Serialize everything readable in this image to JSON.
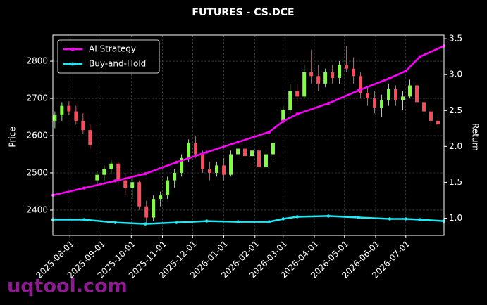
{
  "chart_data": {
    "type": "candlestick",
    "title": "FUTURES - CS.DCE",
    "y_label": "Price",
    "y2_label": "Return",
    "watermark": "uqtool.com",
    "up_color": "#7fff3f",
    "down_color": "#ff4a5a",
    "grid": true,
    "legend": "upper left",
    "xlim": [
      "2025-07-15",
      "2026-08-08"
    ],
    "xticks": [
      "2025-08-01",
      "2025-09-01",
      "2025-10-01",
      "2025-11-01",
      "2025-12-01",
      "2026-01-01",
      "2026-02-01",
      "2026-03-01",
      "2026-04-01",
      "2026-05-01",
      "2026-06-01",
      "2026-07-01"
    ],
    "ylim": [
      2332,
      2870
    ],
    "yticks": [
      2400,
      2500,
      2600,
      2700,
      2800
    ],
    "y2lim": [
      0.76,
      3.55
    ],
    "y2ticks": [
      {
        "value": 1,
        "label": "1.0"
      },
      1.5,
      {
        "value": 2,
        "label": "2.0"
      },
      2.5,
      {
        "value": 3,
        "label": "3.0"
      },
      3.5
    ],
    "x": [
      "2025-07-17",
      "2025-07-24",
      "2025-07-31",
      "2025-08-07",
      "2025-08-14",
      "2025-08-21",
      "2025-08-28",
      "2025-09-04",
      "2025-09-11",
      "2025-09-18",
      "2025-09-25",
      "2025-10-02",
      "2025-10-09",
      "2025-10-16",
      "2025-10-23",
      "2025-10-30",
      "2025-11-06",
      "2025-11-13",
      "2025-11-20",
      "2025-11-27",
      "2025-12-04",
      "2025-12-11",
      "2025-12-18",
      "2025-12-25",
      "2026-01-01",
      "2026-01-08",
      "2026-01-15",
      "2026-01-22",
      "2026-01-29",
      "2026-02-05",
      "2026-02-12",
      "2026-02-19",
      "2026-03-01",
      "2026-03-08",
      "2026-03-15",
      "2026-03-22",
      "2026-03-29",
      "2026-04-05",
      "2026-04-12",
      "2026-04-19",
      "2026-04-26",
      "2026-05-03",
      "2026-05-10",
      "2026-05-17",
      "2026-05-24",
      "2026-05-31",
      "2026-06-07",
      "2026-06-14",
      "2026-06-21",
      "2026-06-28",
      "2026-07-05",
      "2026-07-12",
      "2026-07-19",
      "2026-07-26",
      "2026-08-02"
    ],
    "open": [
      2640,
      2655,
      2680,
      2665,
      2640,
      2615,
      2480,
      2495,
      2510,
      2525,
      2480,
      2460,
      2475,
      2410,
      2380,
      2430,
      2440,
      2480,
      2500,
      2540,
      2580,
      2550,
      2510,
      2500,
      2520,
      2495,
      2550,
      2565,
      2545,
      2560,
      2515,
      2550,
      2640,
      2670,
      2720,
      2705,
      2770,
      2760,
      2740,
      2770,
      2755,
      2790,
      2780,
      2760,
      2715,
      2700,
      2675,
      2695,
      2725,
      2695,
      2705,
      2735,
      2690,
      2665,
      2640
    ],
    "high": [
      2665,
      2690,
      2692,
      2680,
      2660,
      2630,
      2505,
      2520,
      2535,
      2530,
      2500,
      2490,
      2480,
      2425,
      2440,
      2450,
      2490,
      2510,
      2550,
      2590,
      2600,
      2560,
      2530,
      2530,
      2540,
      2560,
      2580,
      2585,
      2575,
      2570,
      2560,
      2585,
      2680,
      2740,
      2740,
      2790,
      2830,
      2790,
      2780,
      2790,
      2800,
      2840,
      2810,
      2770,
      2730,
      2720,
      2710,
      2740,
      2735,
      2720,
      2750,
      2740,
      2705,
      2675,
      2655
    ],
    "low": [
      2620,
      2640,
      2655,
      2630,
      2605,
      2565,
      2470,
      2480,
      2495,
      2470,
      2440,
      2430,
      2400,
      2360,
      2370,
      2410,
      2430,
      2460,
      2490,
      2530,
      2540,
      2500,
      2480,
      2490,
      2480,
      2490,
      2530,
      2535,
      2525,
      2500,
      2505,
      2540,
      2630,
      2660,
      2690,
      2700,
      2740,
      2720,
      2730,
      2740,
      2740,
      2770,
      2740,
      2700,
      2680,
      2660,
      2650,
      2680,
      2680,
      2670,
      2700,
      2680,
      2650,
      2630,
      2620
    ],
    "close": [
      2655,
      2680,
      2665,
      2640,
      2615,
      2575,
      2495,
      2510,
      2525,
      2480,
      2460,
      2475,
      2410,
      2380,
      2430,
      2440,
      2480,
      2500,
      2540,
      2580,
      2550,
      2510,
      2500,
      2520,
      2495,
      2550,
      2565,
      2545,
      2560,
      2515,
      2550,
      2580,
      2670,
      2720,
      2705,
      2770,
      2760,
      2740,
      2770,
      2755,
      2790,
      2780,
      2760,
      2715,
      2700,
      2675,
      2695,
      2725,
      2695,
      2705,
      2735,
      2690,
      2665,
      2640,
      2630
    ],
    "series": [
      {
        "name": "AI Strategy",
        "color": "#ff00ff",
        "axis": "y2",
        "x": [
          "2025-07-15",
          "2025-08-15",
          "2025-09-15",
          "2025-10-15",
          "2025-11-15",
          "2025-12-15",
          "2026-01-15",
          "2026-02-15",
          "2026-03-01",
          "2026-03-15",
          "2026-04-15",
          "2026-05-15",
          "2026-06-15",
          "2026-07-01",
          "2026-07-15",
          "2026-08-08"
        ],
        "values": [
          1.32,
          1.42,
          1.52,
          1.62,
          1.78,
          1.92,
          2.06,
          2.2,
          2.35,
          2.45,
          2.6,
          2.78,
          2.95,
          3.05,
          3.25,
          3.4
        ]
      },
      {
        "name": "Buy-and-Hold",
        "color": "#22e8f5",
        "axis": "y2",
        "x": [
          "2025-07-15",
          "2025-08-15",
          "2025-09-15",
          "2025-10-15",
          "2025-11-15",
          "2025-12-15",
          "2026-01-15",
          "2026-02-15",
          "2026-03-01",
          "2026-03-15",
          "2026-04-15",
          "2026-05-15",
          "2026-06-15",
          "2026-07-01",
          "2026-07-15",
          "2026-08-08"
        ],
        "values": [
          0.98,
          0.98,
          0.94,
          0.92,
          0.94,
          0.96,
          0.95,
          0.95,
          0.99,
          1.02,
          1.03,
          1.01,
          0.99,
          0.99,
          0.98,
          0.96
        ]
      }
    ]
  }
}
